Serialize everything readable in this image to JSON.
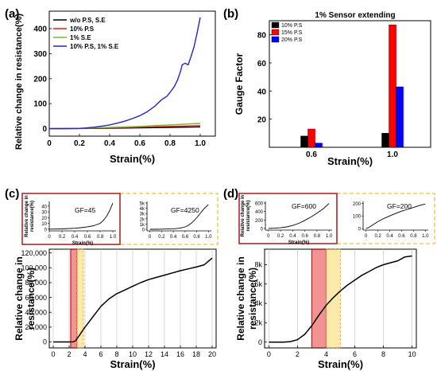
{
  "panel_labels": [
    "(a)",
    "(b)",
    "(c)",
    "(d)"
  ],
  "chart_data": [
    {
      "id": "a",
      "type": "line",
      "xlabel": "Strain(%)",
      "ylabel": "Relative change in resistance(%)",
      "xlim": [
        0,
        1.1
      ],
      "ylim": [
        -30,
        470
      ],
      "xticks": [
        0,
        0.2,
        0.4,
        0.6,
        0.8,
        1.0
      ],
      "xtick_labels": [
        "0",
        "0.2",
        "0.4",
        "0.6",
        "0.8",
        "1.0"
      ],
      "yticks": [
        0,
        100,
        200,
        300,
        400
      ],
      "legend_position": "top-left",
      "series": [
        {
          "name": "w/o P.S, S.E",
          "color": "#000000",
          "x": [
            0,
            0.2,
            0.4,
            0.6,
            0.8,
            1.0
          ],
          "y": [
            0,
            0.5,
            1.5,
            3,
            5,
            7
          ]
        },
        {
          "name": "10% P.S",
          "color": "#e31a1c",
          "x": [
            0,
            0.2,
            0.4,
            0.6,
            0.8,
            1.0
          ],
          "y": [
            0,
            1,
            3,
            6,
            9,
            12
          ]
        },
        {
          "name": "1% S.E",
          "color": "#6abf2a",
          "x": [
            0,
            0.2,
            0.3,
            0.4,
            0.5,
            0.6,
            0.7,
            0.8,
            0.9,
            1.0
          ],
          "y": [
            0,
            1,
            3,
            5,
            7,
            9,
            12,
            15,
            18,
            21
          ]
        },
        {
          "name": "10% P.S, 1% S.E",
          "color": "#2323d8",
          "x": [
            0,
            0.1,
            0.2,
            0.25,
            0.3,
            0.35,
            0.4,
            0.45,
            0.5,
            0.55,
            0.6,
            0.65,
            0.7,
            0.73,
            0.75,
            0.78,
            0.8,
            0.83,
            0.85,
            0.87,
            0.88,
            0.9,
            0.92,
            0.94,
            0.96,
            0.98,
            1.0
          ],
          "y": [
            0,
            0,
            1,
            3,
            6,
            10,
            15,
            22,
            30,
            40,
            52,
            68,
            90,
            108,
            118,
            130,
            145,
            170,
            195,
            230,
            255,
            262,
            255,
            290,
            330,
            385,
            445
          ]
        }
      ]
    },
    {
      "id": "b",
      "type": "bar",
      "title": "1% Sensor extending",
      "xlabel": "Strain(%)",
      "ylabel": "Gauge Factor",
      "categories": [
        "0.6",
        "1.0"
      ],
      "ylim": [
        0,
        90
      ],
      "yticks": [
        20,
        40,
        60,
        80
      ],
      "legend_position": "top-left",
      "series": [
        {
          "name": "10% P.S",
          "color": "#000000",
          "values": [
            8,
            10
          ]
        },
        {
          "name": "15% P.S",
          "color": "#ff0000",
          "values": [
            13,
            87
          ]
        },
        {
          "name": "20% P.S",
          "color": "#0000ff",
          "values": [
            3,
            43
          ]
        }
      ]
    },
    {
      "id": "c",
      "type": "line",
      "xlabel": "Strain(%)",
      "ylabel": "Relative change in resistance(%)",
      "xlim": [
        -0.5,
        20.5
      ],
      "ylim": [
        -8000,
        125000
      ],
      "xticks": [
        0,
        2,
        4,
        6,
        8,
        10,
        12,
        14,
        16,
        18,
        20
      ],
      "yticks": [
        0,
        20000,
        40000,
        60000,
        80000,
        100000,
        120000
      ],
      "ytick_labels": [
        "0",
        "20,000",
        "40,000",
        "60,000",
        "80,000",
        "100,000",
        "120,000"
      ],
      "highlight_red": [
        2.2,
        3.0
      ],
      "highlight_yellow": [
        3.0,
        3.8
      ],
      "series": [
        {
          "name": "",
          "color": "#000000",
          "x": [
            0,
            2.0,
            2.5,
            2.8,
            3.0,
            3.3,
            3.6,
            4,
            4.5,
            5,
            5.5,
            6,
            7,
            8,
            9,
            10,
            11,
            12,
            13,
            14,
            15,
            16,
            17,
            18,
            19,
            20
          ],
          "y": [
            0,
            0,
            100,
            1500,
            4500,
            9000,
            14000,
            20000,
            27000,
            34000,
            41000,
            48000,
            58000,
            65000,
            70000,
            75000,
            80000,
            84000,
            87000,
            90000,
            93000,
            96000,
            98500,
            101000,
            104000,
            113000
          ]
        }
      ],
      "inset1": {
        "annotation": "GF=45",
        "xlabel": "Strain(%)",
        "ylabel": "Relative change in resistance(%)",
        "xlim": [
          0,
          1.05
        ],
        "ylim": [
          -3,
          48
        ],
        "xticks": [
          0,
          0.2,
          0.4,
          0.6,
          0.8,
          1.0
        ],
        "xtick_labels": [
          "0",
          "0.2",
          "0.4",
          "0.6",
          "0.8",
          "1.0"
        ],
        "yticks": [
          0,
          10,
          20,
          30,
          40
        ],
        "ytick_labels": [
          "0",
          "10",
          "20",
          "30",
          "40"
        ],
        "x": [
          0,
          0.2,
          0.4,
          0.5,
          0.6,
          0.7,
          0.8,
          0.85,
          0.9,
          0.95,
          1.0
        ],
        "y": [
          0,
          0.5,
          1.5,
          2.5,
          4,
          6,
          10,
          15,
          22,
          32,
          45
        ]
      },
      "inset2": {
        "annotation": "GF=4250",
        "xlim": [
          -0.05,
          1.05
        ],
        "ylim": [
          -300,
          5300
        ],
        "xticks": [
          0,
          0.2,
          0.4,
          0.6,
          0.8,
          1.0
        ],
        "xtick_labels": [
          "0",
          "0.2",
          "0.4",
          "0.6",
          "0.8",
          "1.0"
        ],
        "yticks": [
          0,
          1000,
          2000,
          3000,
          4000,
          5000
        ],
        "ytick_labels": [
          "0",
          "1k",
          "2k",
          "3k",
          "4k",
          "5k"
        ],
        "x": [
          0,
          0.1,
          0.2,
          0.3,
          0.4,
          0.45,
          0.5,
          0.55,
          0.6,
          0.65,
          0.7,
          0.75,
          0.8,
          0.85,
          0.9,
          0.95,
          1.0
        ],
        "y": [
          0,
          10,
          30,
          60,
          100,
          140,
          200,
          300,
          450,
          700,
          1100,
          1600,
          2200,
          2900,
          3600,
          4200,
          4700
        ]
      }
    },
    {
      "id": "d",
      "type": "line",
      "xlabel": "Strain(%)",
      "ylabel": "Relative change in resistance(%)",
      "xlim": [
        -0.3,
        10.3
      ],
      "ylim": [
        -600,
        9600
      ],
      "xticks": [
        0,
        2,
        4,
        6,
        8,
        10
      ],
      "yticks": [
        0,
        2000,
        4000,
        6000,
        8000
      ],
      "ytick_labels": [
        "0",
        "2k",
        "4k",
        "6k",
        "8k"
      ],
      "highlight_red": [
        3.0,
        4.0
      ],
      "highlight_yellow": [
        4.0,
        5.0
      ],
      "series": [
        {
          "name": "",
          "color": "#000000",
          "x": [
            0,
            1.0,
            1.5,
            2.0,
            2.5,
            3.0,
            3.5,
            4.0,
            4.5,
            5.0,
            5.5,
            6.0,
            6.5,
            7.0,
            7.5,
            8.0,
            8.5,
            9.0,
            9.5,
            10.0
          ],
          "y": [
            0,
            0,
            50,
            250,
            800,
            1700,
            2800,
            3800,
            4600,
            5300,
            5900,
            6400,
            6900,
            7300,
            7700,
            8000,
            8200,
            8400,
            8800,
            8900
          ]
        }
      ],
      "inset1": {
        "annotation": "GF=600",
        "xlabel": "Strain(%)",
        "ylabel": "Relative change in resistance(%)",
        "xlim": [
          -0.05,
          1.05
        ],
        "ylim": [
          -40,
          640
        ],
        "xticks": [
          0,
          0.2,
          0.4,
          0.6,
          0.8,
          1.0
        ],
        "xtick_labels": [
          "0",
          "0.2",
          "0.4",
          "0.6",
          "0.8",
          "1.0"
        ],
        "yticks": [
          0,
          200,
          400,
          600
        ],
        "ytick_labels": [
          "0",
          "200",
          "400",
          "600"
        ],
        "x": [
          0,
          0.1,
          0.2,
          0.3,
          0.4,
          0.5,
          0.6,
          0.7,
          0.8,
          0.9,
          1.0
        ],
        "y": [
          0,
          5,
          15,
          35,
          70,
          120,
          190,
          270,
          360,
          460,
          590
        ]
      },
      "inset2": {
        "annotation": "GF=200",
        "xlim": [
          -0.05,
          1.05
        ],
        "ylim": [
          -12,
          215
        ],
        "xticks": [
          0,
          0.2,
          0.4,
          0.6,
          0.8,
          1.0
        ],
        "xtick_labels": [
          "0",
          "0.2",
          "0.4",
          "0.6",
          "0.8",
          "1.0"
        ],
        "yticks": [
          0,
          100,
          200
        ],
        "ytick_labels": [
          "0",
          "100",
          "200"
        ],
        "x": [
          0,
          0.05,
          0.1,
          0.15,
          0.2,
          0.3,
          0.4,
          0.5,
          0.6,
          0.7,
          0.8,
          0.9,
          1.0
        ],
        "y": [
          0,
          10,
          25,
          40,
          55,
          80,
          100,
          120,
          138,
          152,
          167,
          182,
          195
        ]
      }
    }
  ]
}
